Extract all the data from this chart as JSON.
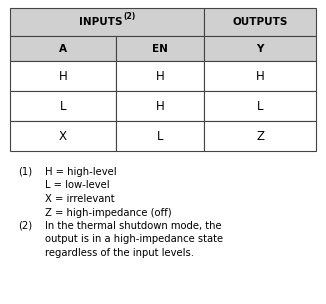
{
  "background_color": "#ffffff",
  "header_bg": "#d0d0d0",
  "line_color": "#444444",
  "text_color": "#000000",
  "col_splits": [
    0.0,
    0.345,
    0.635,
    1.0
  ],
  "header1_labels": [
    "INPUTS",
    "OUTPUTS"
  ],
  "superscript": "(2)",
  "header2_labels": [
    "A",
    "EN",
    "Y"
  ],
  "data_rows": [
    [
      "H",
      "H",
      "H"
    ],
    [
      "L",
      "H",
      "L"
    ],
    [
      "X",
      "L",
      "Z"
    ]
  ],
  "fn_label1": "(1)",
  "fn_lines1": [
    "H = high-level",
    "L = low-level",
    "X = irrelevant",
    "Z = high-impedance (off)"
  ],
  "fn_label2": "(2)",
  "fn_lines2": [
    "In the thermal shutdown mode, the",
    "output is in a high-impedance state",
    "regardless of the input levels."
  ],
  "font_size_header": 7.5,
  "font_size_data": 8.5,
  "font_size_footnote": 7.2,
  "lw": 0.8
}
